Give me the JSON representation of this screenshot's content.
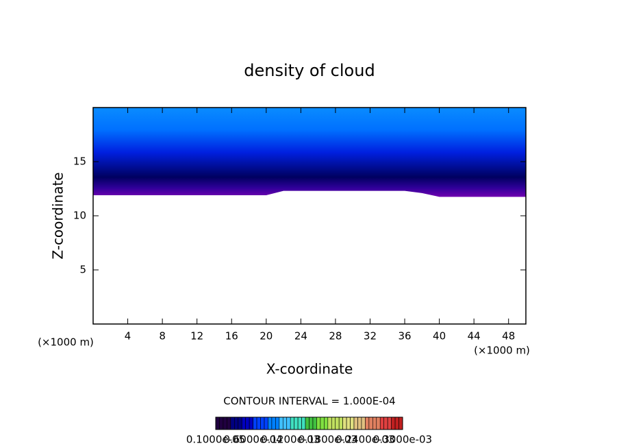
{
  "chart_data": {
    "type": "contour",
    "title": "density of cloud",
    "x_label": "X-coordinate",
    "y_label": "Z-coordinate",
    "x_unit_left": "(×1000 m)",
    "x_unit_right": "(×1000 m)",
    "contour_note": "CONTOUR INTERVAL = 1.000E-04",
    "xlim": [
      0,
      50
    ],
    "ylim": [
      0,
      20
    ],
    "xticks": [
      4,
      8,
      12,
      16,
      20,
      24,
      28,
      32,
      36,
      40,
      44,
      48
    ],
    "yticks": [
      5,
      10,
      15
    ],
    "cloud_base": {
      "x": [
        0,
        2,
        4,
        6,
        8,
        10,
        12,
        14,
        16,
        18,
        20,
        22,
        24,
        26,
        28,
        30,
        32,
        34,
        36,
        38,
        40,
        42,
        44,
        46,
        48,
        50
      ],
      "z": [
        11.9,
        11.9,
        11.9,
        11.9,
        11.9,
        11.9,
        11.9,
        11.9,
        11.9,
        11.9,
        11.9,
        12.3,
        12.3,
        12.3,
        12.3,
        12.3,
        12.3,
        12.3,
        12.3,
        12.1,
        11.75,
        11.75,
        11.75,
        11.75,
        11.75,
        11.75
      ]
    },
    "colorbar_labels": [
      "0.1000e-05",
      "0.6000e-04",
      "0.1200e-03",
      "0.1800e-03",
      "0.2400e-03",
      "0.3000e-03"
    ]
  }
}
